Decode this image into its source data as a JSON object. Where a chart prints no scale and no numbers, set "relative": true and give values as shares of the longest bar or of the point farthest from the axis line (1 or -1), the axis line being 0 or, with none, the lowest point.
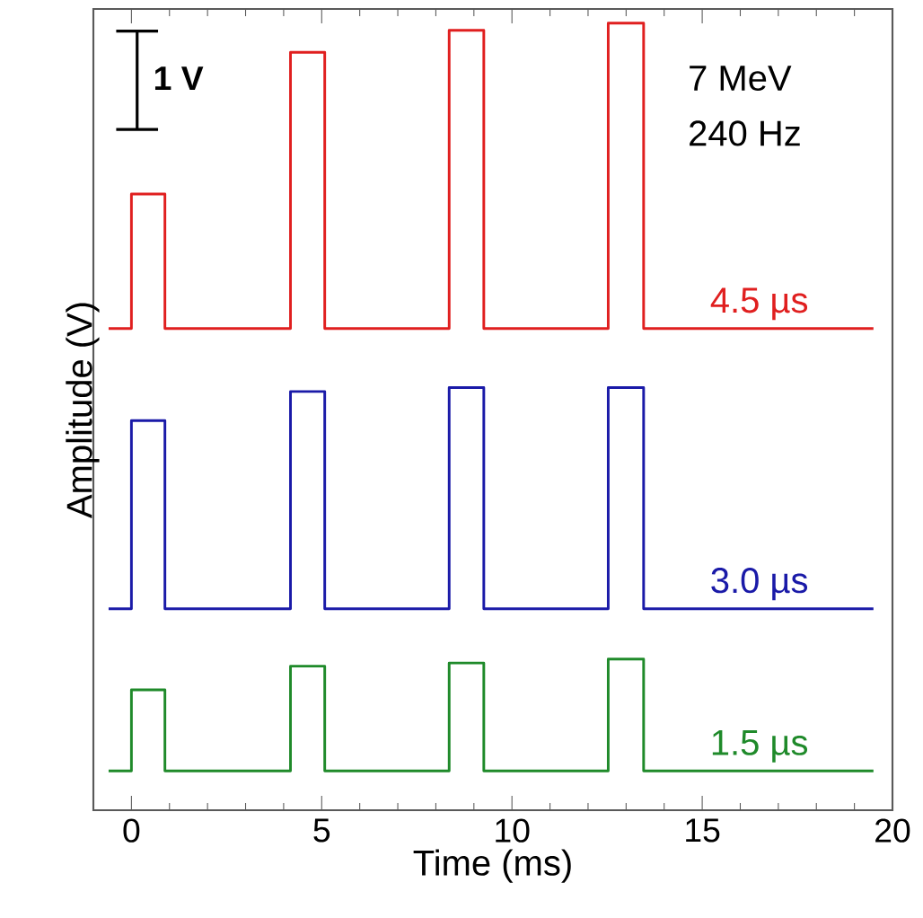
{
  "chart_data": {
    "type": "line",
    "relative": true,
    "xlabel": "Time (ms)",
    "ylabel": "Amplitude (V)",
    "xlim": [
      -1,
      20
    ],
    "xticks": [
      0,
      5,
      10,
      15,
      20
    ],
    "annotations": [
      "1 V",
      "7 MeV",
      "240 Hz"
    ],
    "x": [
      -0.6,
      0.0,
      0.0,
      0.88,
      0.88,
      4.18,
      4.18,
      5.08,
      5.08,
      8.35,
      8.35,
      9.26,
      9.26,
      12.53,
      12.53,
      13.46,
      13.46,
      19.5
    ],
    "series": [
      {
        "name": "4.5 µs",
        "color": "#e01f1f",
        "values": [
          0.612,
          0.612,
          0.783,
          0.783,
          0.612,
          0.612,
          0.963,
          0.963,
          0.612,
          0.612,
          0.991,
          0.991,
          0.612,
          0.612,
          1.0,
          1.0,
          0.612,
          0.612
        ]
      },
      {
        "name": "3.0 µs",
        "color": "#1a1aa8",
        "values": [
          0.256,
          0.256,
          0.495,
          0.495,
          0.256,
          0.256,
          0.532,
          0.532,
          0.256,
          0.256,
          0.537,
          0.537,
          0.256,
          0.256,
          0.537,
          0.537,
          0.256,
          0.256
        ]
      },
      {
        "name": "1.5 µs",
        "color": "#1f8a2a",
        "values": [
          0.05,
          0.05,
          0.153,
          0.153,
          0.05,
          0.05,
          0.183,
          0.183,
          0.05,
          0.05,
          0.187,
          0.187,
          0.05,
          0.05,
          0.192,
          0.192,
          0.05,
          0.05
        ]
      }
    ]
  }
}
